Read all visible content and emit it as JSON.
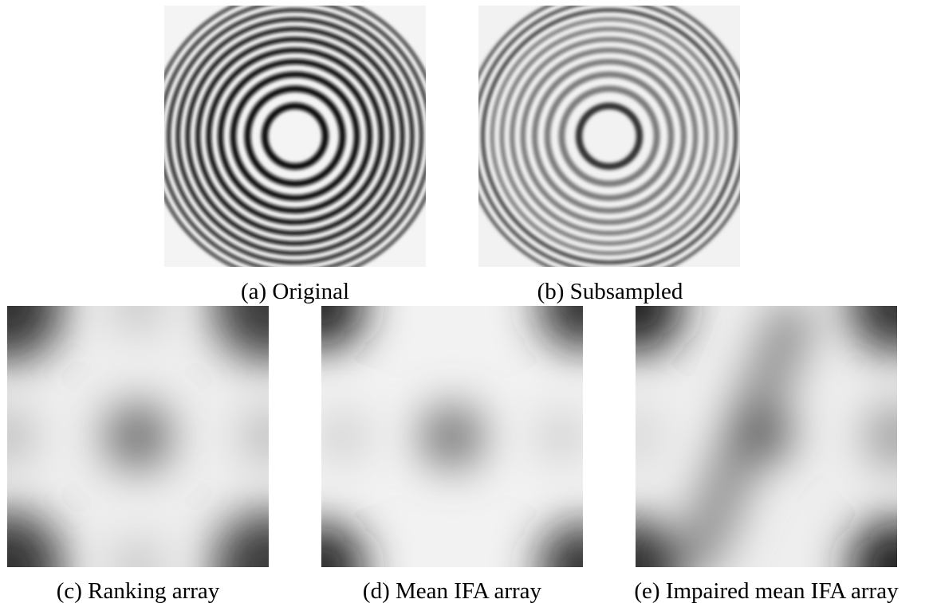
{
  "panels": [
    {
      "caption": "(a) Original"
    },
    {
      "caption": "(b) Subsampled"
    },
    {
      "caption": "(c) Ranking array"
    },
    {
      "caption": "(d) Mean IFA array"
    },
    {
      "caption": "(e) Impaired mean IFA array"
    }
  ]
}
